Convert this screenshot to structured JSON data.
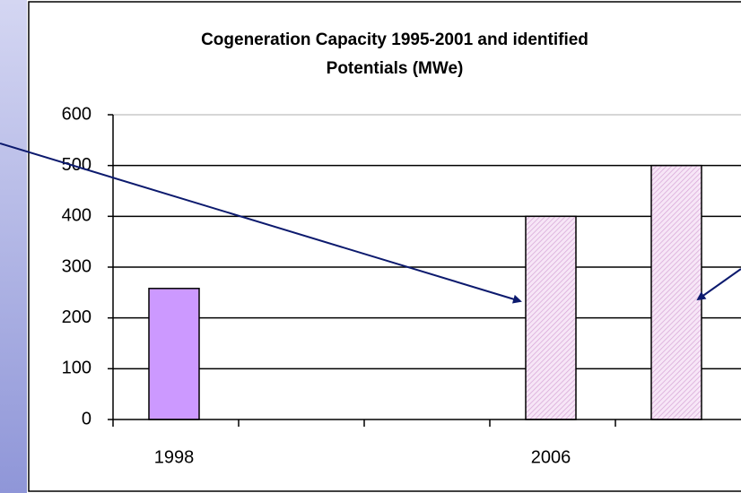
{
  "chart_data": {
    "type": "bar",
    "title": [
      "Cogeneration Capacity 1995-2001 and identified",
      "Potentials (MWe)"
    ],
    "categories": [
      "1998",
      null,
      null,
      "2006",
      null
    ],
    "values": [
      258,
      null,
      null,
      400,
      500
    ],
    "colors": [
      "#cc99ff",
      null,
      null,
      "#f3d9f3",
      "#f3d9f3"
    ],
    "hatched": [
      false,
      null,
      null,
      true,
      true
    ],
    "ylim": [
      0,
      600
    ],
    "yticks": [
      0,
      100,
      200,
      300,
      400,
      500,
      600
    ],
    "grid": true
  }
}
